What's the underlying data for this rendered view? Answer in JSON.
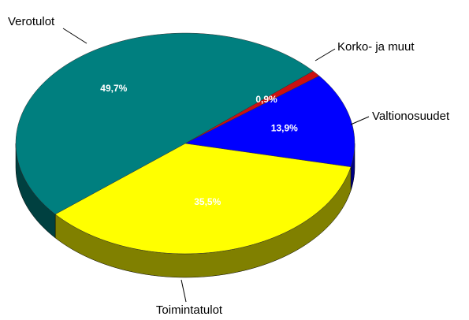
{
  "chart_data": {
    "type": "pie",
    "categories": [
      "Korko- ja muut",
      "Valtionosuudet",
      "Toimintatulot",
      "Verotulot"
    ],
    "values": [
      0.9,
      13.9,
      35.5,
      49.7
    ],
    "value_labels": [
      "0,9%",
      "13,9%",
      "35,5%",
      "49,7%"
    ],
    "colors": [
      "#cc1111",
      "#0000ff",
      "#ffff00",
      "#007f7f"
    ]
  }
}
